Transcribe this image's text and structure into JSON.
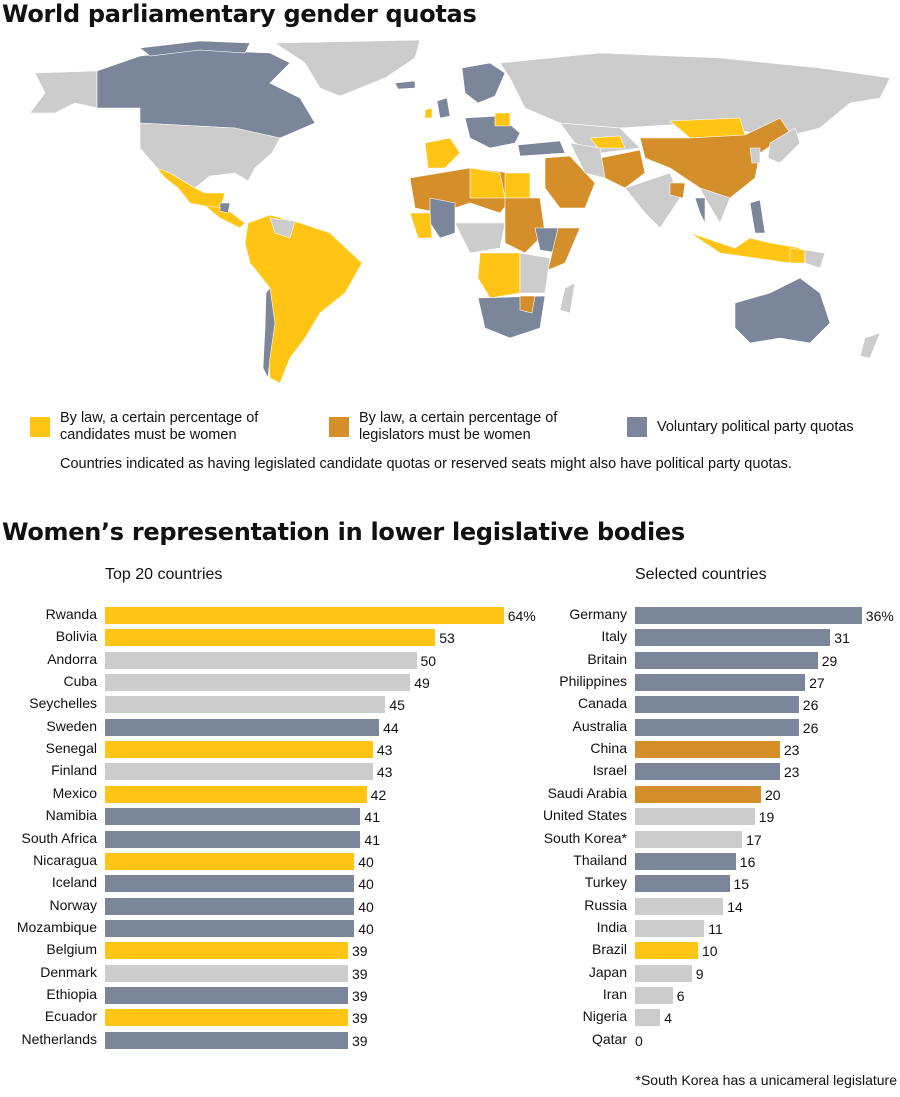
{
  "colors": {
    "candidates_law": "#FFC414",
    "legislators_law": "#D48F2A",
    "voluntary": "#7B869A",
    "none": "#CCCCCC"
  },
  "map": {
    "title": "World parliamentary gender quotas",
    "legend": [
      {
        "key": "candidates_law",
        "label_line1": "By law, a certain percentage of",
        "label_line2": "candidates must be women"
      },
      {
        "key": "legislators_law",
        "label_line1": "By law, a certain percentage of",
        "label_line2": "legislators must be women"
      },
      {
        "key": "voluntary",
        "label_line1": "Voluntary political party quotas",
        "label_line2": ""
      }
    ],
    "note": "Countries indicated as having legislated candidate quotas or reserved seats might also have political party quotas."
  },
  "chart_data": [
    {
      "type": "bar",
      "orientation": "horizontal",
      "title": "Women’s representation in lower legislative bodies",
      "subtitle": "Top 20 countries",
      "unit": "%",
      "categories": [
        "Rwanda",
        "Bolivia",
        "Andorra",
        "Cuba",
        "Seychelles",
        "Sweden",
        "Senegal",
        "Finland",
        "Mexico",
        "Namibia",
        "South Africa",
        "Nicaragua",
        "Iceland",
        "Norway",
        "Mozambique",
        "Belgium",
        "Denmark",
        "Ethiopia",
        "Ecuador",
        "Netherlands"
      ],
      "values": [
        64,
        53,
        50,
        49,
        45,
        44,
        43,
        43,
        42,
        41,
        41,
        40,
        40,
        40,
        40,
        39,
        39,
        39,
        39,
        39
      ],
      "value_labels": [
        "64%",
        "53",
        "50",
        "49",
        "45",
        "44",
        "43",
        "43",
        "42",
        "41",
        "41",
        "40",
        "40",
        "40",
        "40",
        "39",
        "39",
        "39",
        "39",
        "39"
      ],
      "quota_type": [
        "candidates_law",
        "candidates_law",
        "none",
        "none",
        "none",
        "voluntary",
        "candidates_law",
        "none",
        "candidates_law",
        "voluntary",
        "voluntary",
        "candidates_law",
        "voluntary",
        "voluntary",
        "voluntary",
        "candidates_law",
        "none",
        "voluntary",
        "candidates_law",
        "voluntary"
      ]
    },
    {
      "type": "bar",
      "orientation": "horizontal",
      "subtitle": "Selected countries",
      "unit": "%",
      "categories": [
        "Germany",
        "Italy",
        "Britain",
        "Philippines",
        "Canada",
        "Australia",
        "China",
        "Israel",
        "Saudi Arabia",
        "United States",
        "South Korea*",
        "Thailand",
        "Turkey",
        "Russia",
        "India",
        "Brazil",
        "Japan",
        "Iran",
        "Nigeria",
        "Qatar"
      ],
      "values": [
        36,
        31,
        29,
        27,
        26,
        26,
        23,
        23,
        20,
        19,
        17,
        16,
        15,
        14,
        11,
        10,
        9,
        6,
        4,
        0
      ],
      "value_labels": [
        "36%",
        "31",
        "29",
        "27",
        "26",
        "26",
        "23",
        "23",
        "20",
        "19",
        "17",
        "16",
        "15",
        "14",
        "11",
        "10",
        "9",
        "6",
        "4",
        "0"
      ],
      "quota_type": [
        "voluntary",
        "voluntary",
        "voluntary",
        "voluntary",
        "voluntary",
        "voluntary",
        "legislators_law",
        "voluntary",
        "legislators_law",
        "none",
        "none",
        "voluntary",
        "voluntary",
        "none",
        "none",
        "candidates_law",
        "none",
        "none",
        "none",
        "none"
      ],
      "footnote": "*South Korea has a unicameral legislature"
    }
  ]
}
